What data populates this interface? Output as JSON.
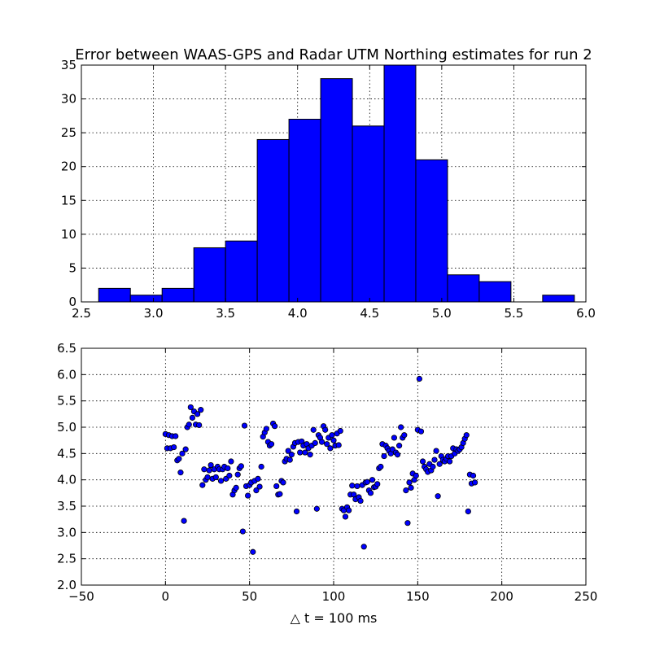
{
  "chart_data": [
    {
      "type": "bar",
      "title": "Error between WAAS-GPS and Radar UTM Northing estimates for run 2",
      "xlabel": "",
      "ylabel": "",
      "xlim": [
        2.5,
        6.0
      ],
      "ylim": [
        0,
        35
      ],
      "xticks": [
        "2.5",
        "3.0",
        "3.5",
        "4.0",
        "4.5",
        "5.0",
        "5.5",
        "6.0"
      ],
      "yticks": [
        "0",
        "5",
        "10",
        "15",
        "20",
        "25",
        "30",
        "35"
      ],
      "grid": true,
      "bar_color": "#0000ff",
      "bin_edges": [
        2.62,
        2.84,
        3.06,
        3.28,
        3.5,
        3.72,
        3.94,
        4.16,
        4.38,
        4.6,
        4.82,
        5.04,
        5.26,
        5.48,
        5.7,
        5.92
      ],
      "values": [
        2,
        1,
        2,
        8,
        9,
        24,
        27,
        33,
        26,
        35,
        21,
        4,
        3,
        0,
        1
      ]
    },
    {
      "type": "scatter",
      "title": "",
      "xlabel": "△ t = 100 ms",
      "ylabel": "",
      "xlim": [
        -50,
        250
      ],
      "ylim": [
        2.0,
        6.5
      ],
      "xticks": [
        "−50",
        "0",
        "50",
        "100",
        "150",
        "200",
        "250"
      ],
      "yticks": [
        "2.0",
        "2.5",
        "3.0",
        "3.5",
        "4.0",
        "4.5",
        "5.0",
        "5.5",
        "6.0",
        "6.5"
      ],
      "grid": true,
      "marker_color": "#0000ff",
      "points": [
        [
          0,
          4.87
        ],
        [
          1,
          4.6
        ],
        [
          2,
          4.85
        ],
        [
          3,
          4.6
        ],
        [
          4,
          4.83
        ],
        [
          5,
          4.62
        ],
        [
          6,
          4.83
        ],
        [
          7,
          4.37
        ],
        [
          8,
          4.4
        ],
        [
          9,
          4.14
        ],
        [
          10,
          4.5
        ],
        [
          11,
          3.22
        ],
        [
          12,
          4.58
        ],
        [
          13,
          5.0
        ],
        [
          14,
          5.05
        ],
        [
          15,
          5.38
        ],
        [
          16,
          5.18
        ],
        [
          17,
          5.3
        ],
        [
          18,
          5.05
        ],
        [
          19,
          5.25
        ],
        [
          20,
          5.04
        ],
        [
          21,
          5.33
        ],
        [
          22,
          3.9
        ],
        [
          23,
          4.2
        ],
        [
          24,
          4.0
        ],
        [
          25,
          4.05
        ],
        [
          26,
          4.18
        ],
        [
          27,
          4.28
        ],
        [
          28,
          4.02
        ],
        [
          29,
          4.2
        ],
        [
          30,
          4.05
        ],
        [
          31,
          4.25
        ],
        [
          32,
          4.2
        ],
        [
          33,
          3.98
        ],
        [
          34,
          4.2
        ],
        [
          35,
          4.25
        ],
        [
          36,
          4.02
        ],
        [
          37,
          4.22
        ],
        [
          38,
          4.08
        ],
        [
          39,
          4.35
        ],
        [
          40,
          3.72
        ],
        [
          41,
          3.8
        ],
        [
          42,
          3.85
        ],
        [
          43,
          4.1
        ],
        [
          44,
          4.22
        ],
        [
          45,
          4.26
        ],
        [
          46,
          3.02
        ],
        [
          47,
          5.03
        ],
        [
          48,
          3.88
        ],
        [
          49,
          3.7
        ],
        [
          50,
          3.9
        ],
        [
          51,
          3.95
        ],
        [
          52,
          2.63
        ],
        [
          53,
          3.98
        ],
        [
          54,
          3.8
        ],
        [
          55,
          4.02
        ],
        [
          56,
          3.87
        ],
        [
          57,
          4.25
        ],
        [
          58,
          4.82
        ],
        [
          59,
          4.9
        ],
        [
          60,
          4.97
        ],
        [
          61,
          4.72
        ],
        [
          62,
          4.65
        ],
        [
          63,
          4.68
        ],
        [
          64,
          5.07
        ],
        [
          65,
          5.02
        ],
        [
          66,
          3.88
        ],
        [
          67,
          3.72
        ],
        [
          68,
          3.73
        ],
        [
          69,
          3.98
        ],
        [
          70,
          3.95
        ],
        [
          71,
          4.35
        ],
        [
          72,
          4.4
        ],
        [
          73,
          4.55
        ],
        [
          74,
          4.38
        ],
        [
          75,
          4.48
        ],
        [
          76,
          4.63
        ],
        [
          77,
          4.7
        ],
        [
          78,
          3.4
        ],
        [
          79,
          4.72
        ],
        [
          80,
          4.52
        ],
        [
          81,
          4.73
        ],
        [
          82,
          4.65
        ],
        [
          83,
          4.52
        ],
        [
          84,
          4.68
        ],
        [
          85,
          4.6
        ],
        [
          86,
          4.48
        ],
        [
          87,
          4.65
        ],
        [
          88,
          4.95
        ],
        [
          89,
          4.7
        ],
        [
          90,
          3.45
        ],
        [
          91,
          4.85
        ],
        [
          92,
          4.8
        ],
        [
          93,
          4.72
        ],
        [
          94,
          5.02
        ],
        [
          95,
          4.95
        ],
        [
          96,
          4.68
        ],
        [
          97,
          4.8
        ],
        [
          98,
          4.6
        ],
        [
          99,
          4.85
        ],
        [
          100,
          4.75
        ],
        [
          101,
          4.65
        ],
        [
          102,
          4.88
        ],
        [
          103,
          4.66
        ],
        [
          104,
          4.93
        ],
        [
          105,
          3.45
        ],
        [
          106,
          3.42
        ],
        [
          107,
          3.3
        ],
        [
          108,
          3.48
        ],
        [
          109,
          3.42
        ],
        [
          110,
          3.72
        ],
        [
          111,
          3.89
        ],
        [
          112,
          3.72
        ],
        [
          113,
          3.63
        ],
        [
          114,
          3.88
        ],
        [
          115,
          3.67
        ],
        [
          116,
          3.6
        ],
        [
          117,
          3.9
        ],
        [
          118,
          2.73
        ],
        [
          119,
          3.95
        ],
        [
          120,
          3.96
        ],
        [
          121,
          3.8
        ],
        [
          122,
          3.75
        ],
        [
          123,
          4.0
        ],
        [
          124,
          3.86
        ],
        [
          125,
          3.87
        ],
        [
          126,
          3.92
        ],
        [
          127,
          4.22
        ],
        [
          128,
          4.25
        ],
        [
          129,
          4.68
        ],
        [
          130,
          4.45
        ],
        [
          131,
          4.65
        ],
        [
          132,
          4.6
        ],
        [
          133,
          4.55
        ],
        [
          134,
          4.5
        ],
        [
          135,
          4.58
        ],
        [
          136,
          4.8
        ],
        [
          137,
          4.52
        ],
        [
          138,
          4.48
        ],
        [
          139,
          4.65
        ],
        [
          140,
          5.0
        ],
        [
          141,
          4.8
        ],
        [
          142,
          4.85
        ],
        [
          143,
          3.8
        ],
        [
          144,
          3.18
        ],
        [
          145,
          3.95
        ],
        [
          146,
          3.85
        ],
        [
          147,
          4.12
        ],
        [
          148,
          4.0
        ],
        [
          149,
          4.08
        ],
        [
          150,
          4.95
        ],
        [
          151,
          5.92
        ],
        [
          152,
          4.92
        ],
        [
          153,
          4.35
        ],
        [
          154,
          4.25
        ],
        [
          155,
          4.2
        ],
        [
          156,
          4.15
        ],
        [
          157,
          4.3
        ],
        [
          158,
          4.18
        ],
        [
          159,
          4.25
        ],
        [
          160,
          4.38
        ],
        [
          161,
          4.55
        ],
        [
          162,
          3.69
        ],
        [
          163,
          4.3
        ],
        [
          164,
          4.45
        ],
        [
          165,
          4.38
        ],
        [
          166,
          4.35
        ],
        [
          167,
          4.4
        ],
        [
          168,
          4.45
        ],
        [
          169,
          4.35
        ],
        [
          170,
          4.45
        ],
        [
          171,
          4.6
        ],
        [
          172,
          4.5
        ],
        [
          173,
          4.58
        ],
        [
          174,
          4.55
        ],
        [
          175,
          4.58
        ],
        [
          176,
          4.62
        ],
        [
          177,
          4.7
        ],
        [
          178,
          4.78
        ],
        [
          179,
          4.85
        ],
        [
          180,
          3.4
        ],
        [
          181,
          4.1
        ],
        [
          182,
          3.93
        ],
        [
          183,
          4.08
        ],
        [
          184,
          3.95
        ]
      ]
    }
  ]
}
